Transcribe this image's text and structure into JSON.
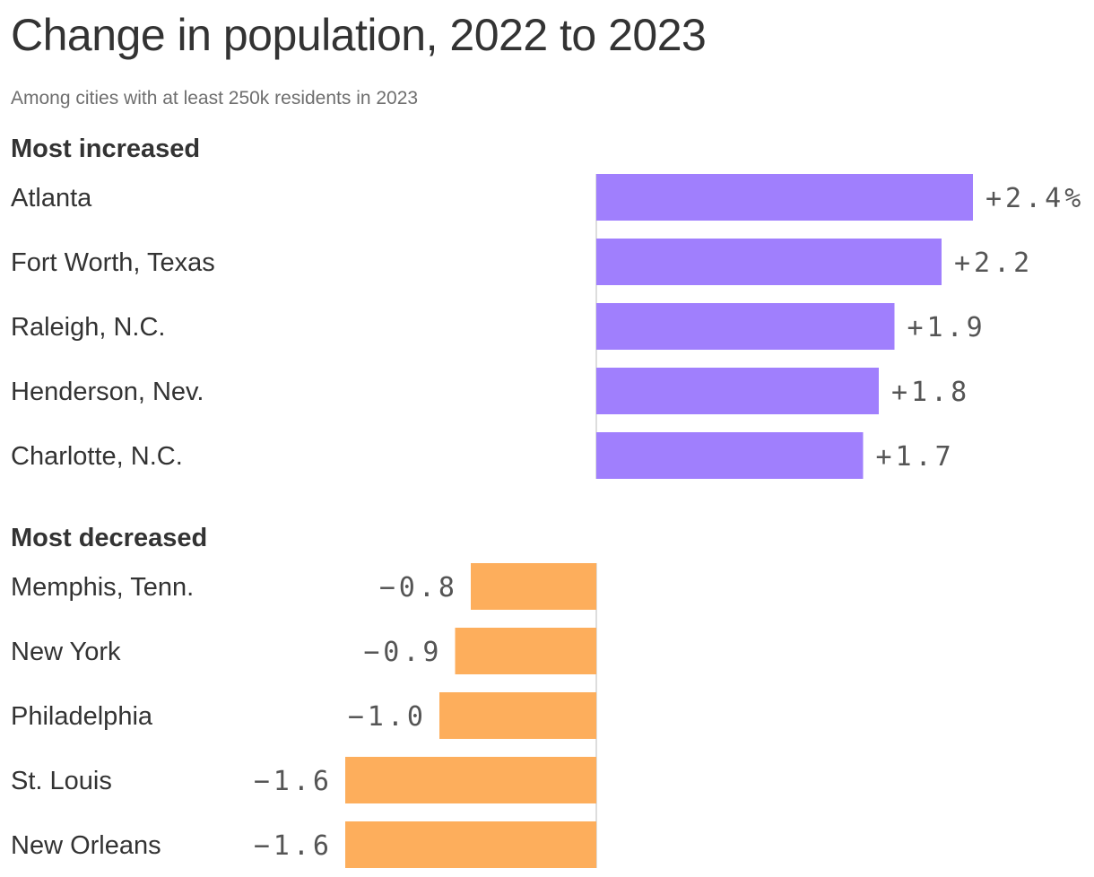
{
  "title": "Change in population, 2022 to 2023",
  "subtitle": "Among cities with at least 250k residents in 2023",
  "chart_data": {
    "type": "bar",
    "orientation": "horizontal",
    "title": "Change in population, 2022 to 2023",
    "subtitle": "Among cities with at least 250k residents in 2023",
    "unit": "%",
    "xlim": [
      -1.6,
      2.4
    ],
    "grid": false,
    "sections": [
      {
        "label": "Most increased",
        "color": "#a07ffd",
        "categories": [
          "Atlanta",
          "Fort Worth, Texas",
          "Raleigh, N.C.",
          "Henderson, Nev.",
          "Charlotte, N.C."
        ],
        "values": [
          2.4,
          2.2,
          1.9,
          1.8,
          1.7
        ],
        "value_labels": [
          "+2.4%",
          "+2.2",
          "+1.9",
          "+1.8",
          "+1.7"
        ]
      },
      {
        "label": "Most decreased",
        "color": "#fdae5c",
        "categories": [
          "Memphis, Tenn.",
          "New York",
          "Philadelphia",
          "St. Louis",
          "New Orleans"
        ],
        "values": [
          -0.8,
          -0.9,
          -1.0,
          -1.6,
          -1.6
        ],
        "value_labels": [
          "−0.8",
          "−0.9",
          "−1.0",
          "−1.6",
          "−1.6"
        ]
      }
    ]
  }
}
